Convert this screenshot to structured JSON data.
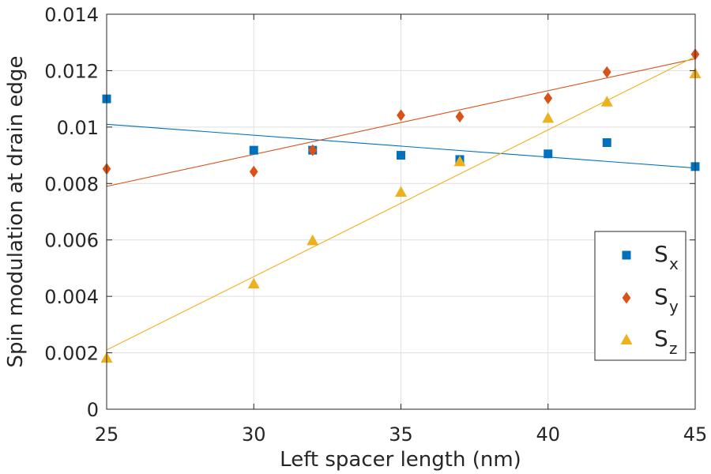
{
  "chart_data": {
    "type": "scatter",
    "title": "",
    "xlabel": "Left spacer length (nm)",
    "ylabel": "Spin modulation at drain edge",
    "xlim": [
      25,
      45
    ],
    "ylim": [
      0,
      0.014
    ],
    "xticks": [
      25,
      30,
      35,
      40,
      45
    ],
    "xtick_labels": [
      "25",
      "30",
      "35",
      "40",
      "45"
    ],
    "yticks": [
      0,
      0.002,
      0.004,
      0.006,
      0.008,
      0.01,
      0.012,
      0.014
    ],
    "ytick_labels": [
      "0",
      "0.002",
      "0.004",
      "0.006",
      "0.008",
      "0.01",
      "0.012",
      "0.014"
    ],
    "grid": true,
    "legend_position": "lower-right",
    "series": [
      {
        "name": "S",
        "subscript": "x",
        "marker": "square",
        "color": "#0072BD",
        "points": [
          [
            25,
            0.011
          ],
          [
            30,
            0.00918
          ],
          [
            32,
            0.00918
          ],
          [
            35,
            0.009
          ],
          [
            37,
            0.00885
          ],
          [
            40,
            0.00905
          ],
          [
            42,
            0.00945
          ],
          [
            45,
            0.0086
          ]
        ],
        "fit": [
          [
            25,
            0.0101
          ],
          [
            45,
            0.00855
          ]
        ]
      },
      {
        "name": "S",
        "subscript": "y",
        "marker": "diamond",
        "color": "#D95319",
        "points": [
          [
            25,
            0.00852
          ],
          [
            30,
            0.00842
          ],
          [
            32,
            0.00918
          ],
          [
            35,
            0.01042
          ],
          [
            37,
            0.01037
          ],
          [
            40,
            0.01102
          ],
          [
            42,
            0.01195
          ],
          [
            45,
            0.01258
          ]
        ],
        "fit": [
          [
            25,
            0.0079
          ],
          [
            45,
            0.01242
          ]
        ]
      },
      {
        "name": "S",
        "subscript": "z",
        "marker": "triangle",
        "color": "#EDB120",
        "points": [
          [
            25,
            0.00182
          ],
          [
            30,
            0.00445
          ],
          [
            32,
            0.00598
          ],
          [
            35,
            0.0077
          ],
          [
            37,
            0.00878
          ],
          [
            40,
            0.01032
          ],
          [
            42,
            0.0109
          ],
          [
            45,
            0.0119
          ]
        ],
        "fit": [
          [
            25,
            0.0021
          ],
          [
            45,
            0.0125
          ]
        ]
      }
    ]
  }
}
